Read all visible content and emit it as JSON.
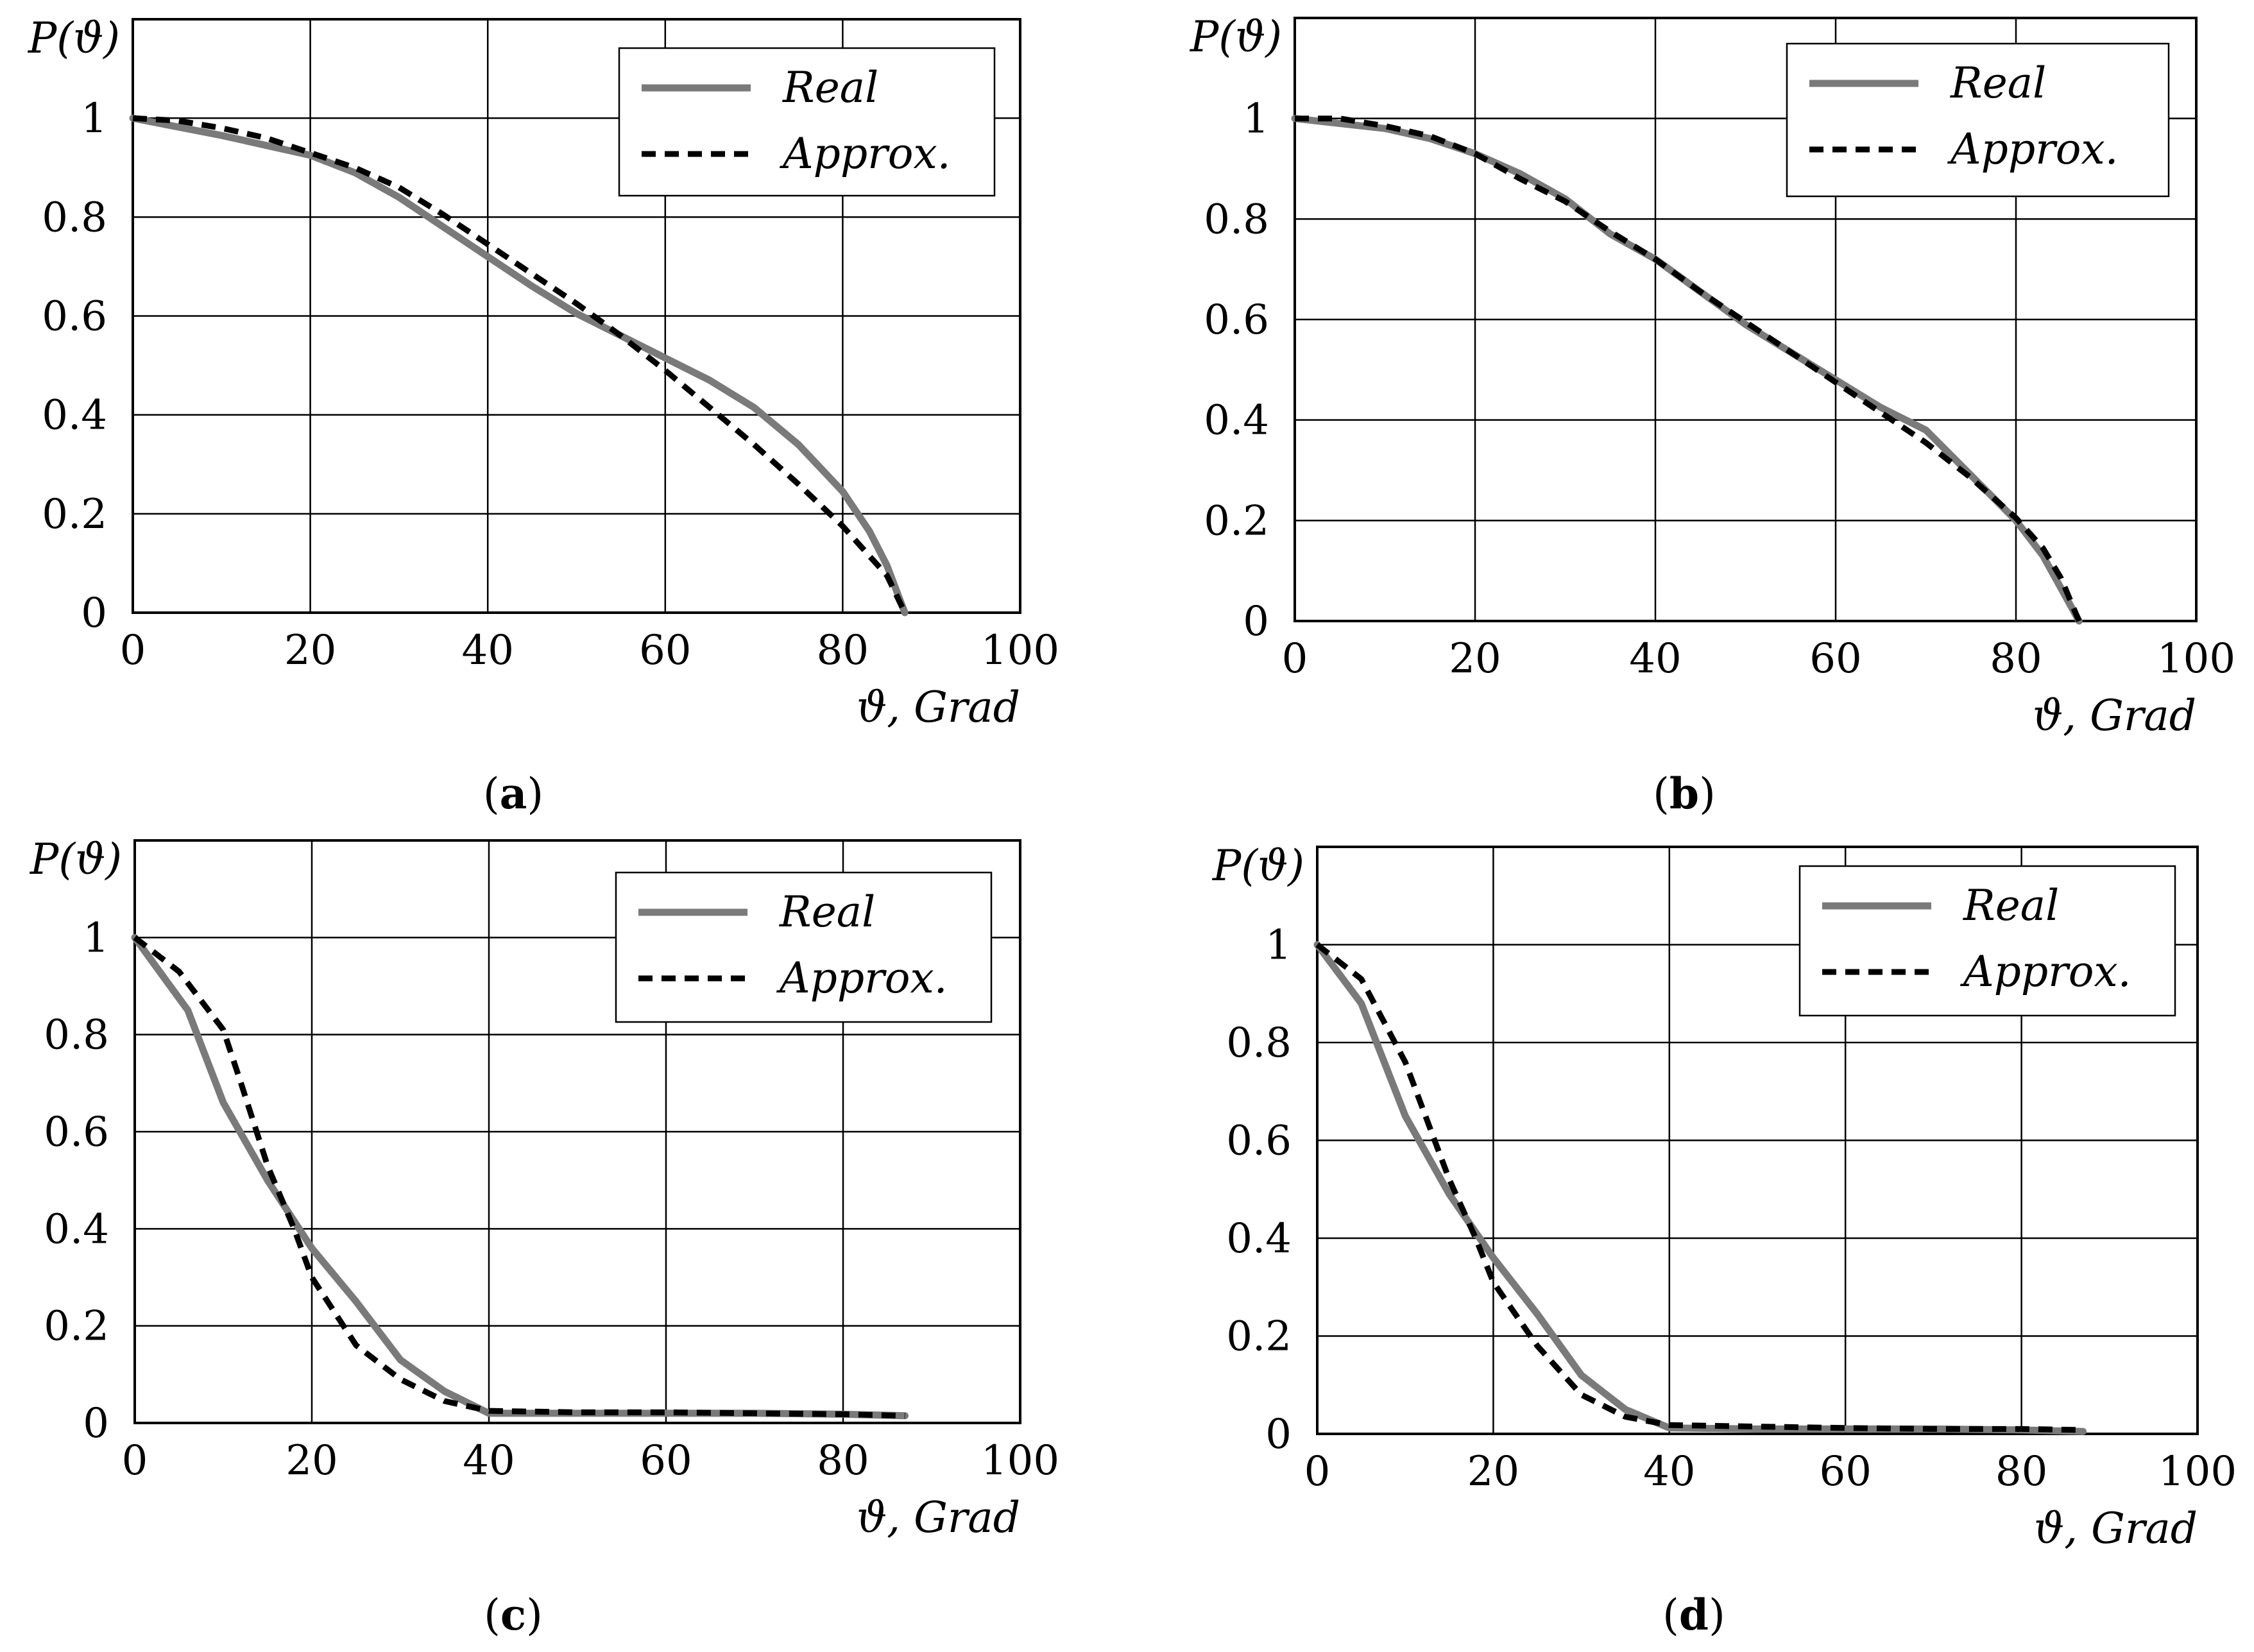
{
  "chart_data": [
    {
      "type": "line",
      "id": "a",
      "caption": "a",
      "ylabel": "P(ϑ)",
      "xlabel": "ϑ, Grad",
      "xlim": [
        0,
        100
      ],
      "ylim": [
        0,
        1.2
      ],
      "xticks": [
        "0",
        "20",
        "40",
        "60",
        "80",
        "100"
      ],
      "yticks": [
        "0",
        "0.2",
        "0.4",
        "0.6",
        "0.8",
        "1"
      ],
      "legend_position": "top-right",
      "series": [
        {
          "name": "Real",
          "style": "solid",
          "color": "#7a7a7a",
          "x": [
            0,
            10,
            20,
            25,
            30,
            35,
            40,
            45,
            50,
            55,
            60,
            65,
            70,
            75,
            80,
            83,
            85,
            87
          ],
          "y": [
            1.0,
            0.965,
            0.925,
            0.89,
            0.84,
            0.78,
            0.72,
            0.66,
            0.605,
            0.56,
            0.515,
            0.47,
            0.415,
            0.34,
            0.245,
            0.165,
            0.095,
            0.0
          ]
        },
        {
          "name": "Approx.",
          "style": "dashed",
          "color": "#000000",
          "x": [
            0,
            5,
            10,
            15,
            20,
            25,
            30,
            35,
            40,
            45,
            50,
            55,
            60,
            65,
            70,
            75,
            80,
            85,
            87
          ],
          "y": [
            1.0,
            0.995,
            0.98,
            0.96,
            0.93,
            0.9,
            0.86,
            0.805,
            0.745,
            0.685,
            0.625,
            0.56,
            0.49,
            0.415,
            0.34,
            0.26,
            0.175,
            0.075,
            0.0
          ]
        }
      ]
    },
    {
      "type": "line",
      "id": "b",
      "caption": "b",
      "ylabel": "P(ϑ)",
      "xlabel": "ϑ, Grad",
      "xlim": [
        0,
        100
      ],
      "ylim": [
        0,
        1.2
      ],
      "xticks": [
        "0",
        "20",
        "40",
        "60",
        "80",
        "100"
      ],
      "yticks": [
        "0",
        "0.2",
        "0.4",
        "0.6",
        "0.8",
        "1"
      ],
      "legend_position": "top-right",
      "series": [
        {
          "name": "Real",
          "style": "solid",
          "color": "#7a7a7a",
          "x": [
            0,
            10,
            15,
            20,
            25,
            30,
            35,
            40,
            45,
            50,
            55,
            60,
            65,
            70,
            75,
            80,
            83,
            85,
            87
          ],
          "y": [
            1.0,
            0.98,
            0.96,
            0.93,
            0.89,
            0.84,
            0.77,
            0.72,
            0.655,
            0.59,
            0.535,
            0.48,
            0.425,
            0.38,
            0.29,
            0.2,
            0.13,
            0.065,
            0.0
          ]
        },
        {
          "name": "Approx.",
          "style": "dashed",
          "color": "#000000",
          "x": [
            0,
            5,
            10,
            15,
            20,
            25,
            30,
            35,
            40,
            45,
            50,
            55,
            60,
            65,
            70,
            75,
            80,
            83,
            85,
            87
          ],
          "y": [
            1.0,
            1.0,
            0.985,
            0.965,
            0.93,
            0.88,
            0.835,
            0.775,
            0.72,
            0.655,
            0.595,
            0.535,
            0.475,
            0.415,
            0.355,
            0.285,
            0.205,
            0.145,
            0.085,
            0.0
          ]
        }
      ]
    },
    {
      "type": "line",
      "id": "c",
      "caption": "c",
      "ylabel": "P(ϑ)",
      "xlabel": "ϑ, Grad",
      "xlim": [
        0,
        100
      ],
      "ylim": [
        0,
        1.2
      ],
      "xticks": [
        "0",
        "20",
        "40",
        "60",
        "80",
        "100"
      ],
      "yticks": [
        "0",
        "0.2",
        "0.4",
        "0.6",
        "0.8",
        "1"
      ],
      "legend_position": "top-right",
      "series": [
        {
          "name": "Real",
          "style": "solid",
          "color": "#7a7a7a",
          "x": [
            0,
            6,
            10,
            15,
            20,
            25,
            30,
            35,
            40,
            50,
            60,
            70,
            80,
            87
          ],
          "y": [
            1.0,
            0.85,
            0.66,
            0.5,
            0.36,
            0.25,
            0.13,
            0.065,
            0.02,
            0.02,
            0.02,
            0.02,
            0.018,
            0.015
          ]
        },
        {
          "name": "Approx.",
          "style": "dashed",
          "color": "#000000",
          "x": [
            0,
            5,
            10,
            12,
            15,
            18,
            20,
            25,
            30,
            35,
            40,
            50,
            60,
            70,
            80,
            87
          ],
          "y": [
            1.0,
            0.93,
            0.81,
            0.7,
            0.53,
            0.4,
            0.3,
            0.16,
            0.09,
            0.045,
            0.025,
            0.022,
            0.022,
            0.02,
            0.018,
            0.015
          ]
        }
      ]
    },
    {
      "type": "line",
      "id": "d",
      "caption": "d",
      "ylabel": "P(ϑ)",
      "xlabel": "ϑ, Grad",
      "xlim": [
        0,
        100
      ],
      "ylim": [
        0,
        1.2
      ],
      "xticks": [
        "0",
        "20",
        "40",
        "60",
        "80",
        "100"
      ],
      "yticks": [
        "0",
        "0.2",
        "0.4",
        "0.6",
        "0.8",
        "1"
      ],
      "legend_position": "top-right",
      "series": [
        {
          "name": "Real",
          "style": "solid",
          "color": "#7a7a7a",
          "x": [
            0,
            5,
            10,
            15,
            20,
            25,
            30,
            35,
            40,
            50,
            60,
            70,
            80,
            87
          ],
          "y": [
            1.0,
            0.88,
            0.65,
            0.49,
            0.36,
            0.245,
            0.12,
            0.05,
            0.012,
            0.01,
            0.01,
            0.01,
            0.008,
            0.005
          ]
        },
        {
          "name": "Approx.",
          "style": "dashed",
          "color": "#000000",
          "x": [
            0,
            5,
            10,
            15,
            18,
            20,
            25,
            30,
            35,
            40,
            50,
            60,
            70,
            80,
            87
          ],
          "y": [
            1.0,
            0.93,
            0.76,
            0.52,
            0.4,
            0.31,
            0.18,
            0.08,
            0.035,
            0.018,
            0.015,
            0.012,
            0.01,
            0.01,
            0.008
          ]
        }
      ]
    }
  ]
}
